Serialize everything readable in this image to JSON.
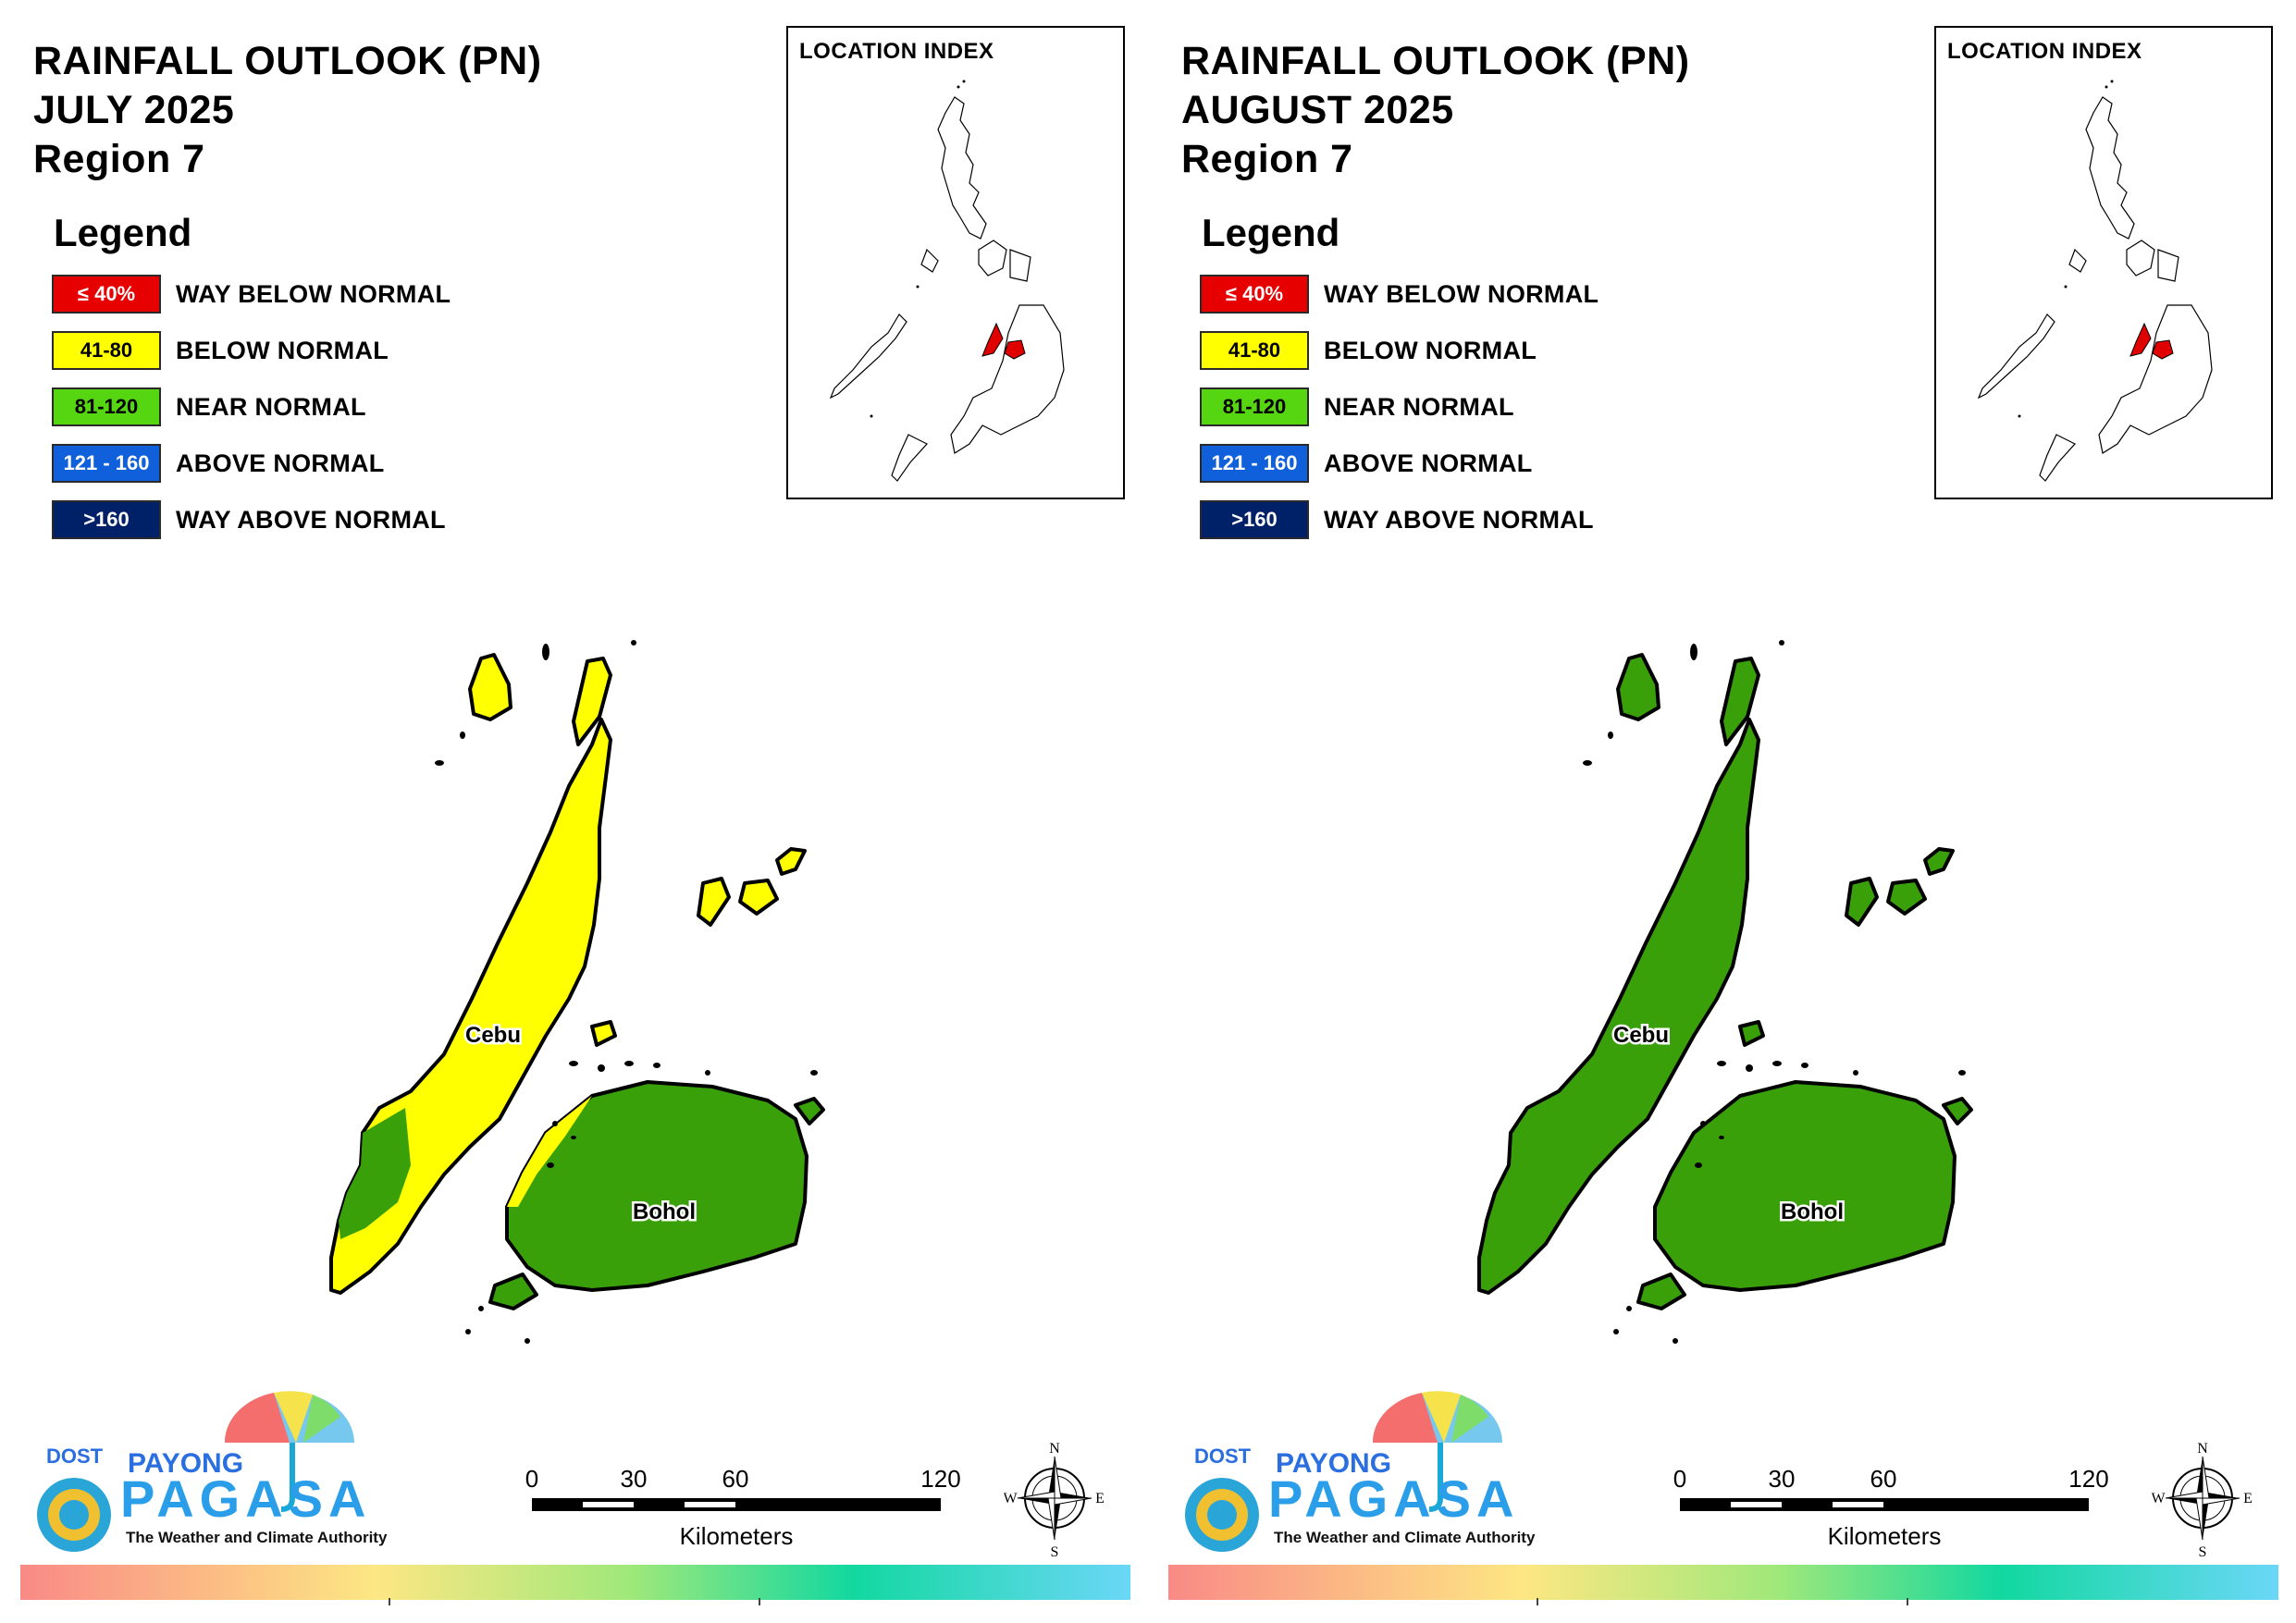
{
  "legend": {
    "title": "Legend",
    "items": [
      {
        "code": "≤ 40%",
        "label": "WAY BELOW NORMAL",
        "color": "#e60000",
        "text_color": "#ffffff"
      },
      {
        "code": "41-80",
        "label": "BELOW NORMAL",
        "color": "#ffff00",
        "text_color": "#000000"
      },
      {
        "code": "81-120",
        "label": "NEAR NORMAL",
        "color": "#55d611",
        "text_color": "#000000"
      },
      {
        "code": "121 - 160",
        "label": "ABOVE NORMAL",
        "color": "#1060dc",
        "text_color": "#ffffff"
      },
      {
        "code": ">160",
        "label": "WAY ABOVE NORMAL",
        "color": "#002068",
        "text_color": "#ffffff"
      }
    ]
  },
  "panels": [
    {
      "title_line1": "RAINFALL OUTLOOK (PN)",
      "title_line2": "JULY 2025",
      "title_line3": "Region 7",
      "index_title": "LOCATION INDEX",
      "cebu_color": "#ffff00",
      "cebu_south_color": "#3aa00a",
      "bohol_color": "#3aa00a",
      "islands_color": "#ffff00",
      "cebu_label": "Cebu",
      "bohol_label": "Bohol"
    },
    {
      "title_line1": "RAINFALL OUTLOOK (PN)",
      "title_line2": "AUGUST 2025",
      "title_line3": "Region 7",
      "index_title": "LOCATION INDEX",
      "cebu_color": "#3aa00a",
      "cebu_south_color": "#3aa00a",
      "bohol_color": "#3aa00a",
      "islands_color": "#3aa00a",
      "cebu_label": "Cebu",
      "bohol_label": "Bohol"
    }
  ],
  "scale": {
    "ticks": [
      "0",
      "30",
      "60",
      "120"
    ],
    "unit": "Kilometers"
  },
  "compass": {
    "n": "N",
    "s": "S",
    "e": "E",
    "w": "W"
  },
  "logo": {
    "dost": "DOST",
    "payong": "PAYONG",
    "pagasa": "PAGASA",
    "tagline": "The Weather and Climate Authority"
  },
  "colors": {
    "index_highlight": "#e00000",
    "outline": "#000000"
  }
}
